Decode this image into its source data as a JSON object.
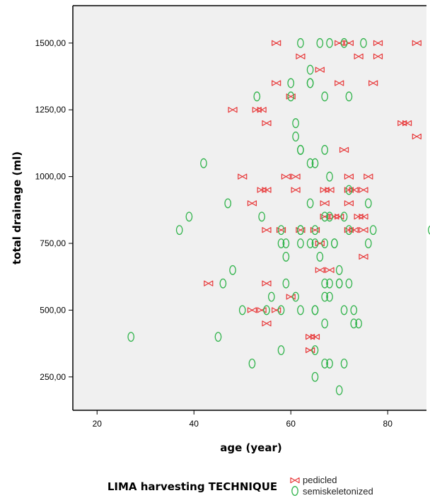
{
  "chart_data": {
    "type": "scatter",
    "xlabel": "age (year)",
    "ylabel": "total drainage (ml)",
    "xlim": [
      15,
      88
    ],
    "ylim": [
      125,
      1640
    ],
    "x_ticks": [
      20,
      40,
      60,
      80
    ],
    "y_ticks": [
      250,
      500,
      750,
      1000,
      1250,
      1500
    ],
    "x_tick_labels": [
      "20",
      "40",
      "60",
      "80"
    ],
    "y_tick_labels": [
      "250,00",
      "500,00",
      "750,00",
      "1000,00",
      "1250,00",
      "1500,00"
    ],
    "grid": false,
    "plot_background": "#f0f0f0",
    "legend": {
      "title": "LIMA harvesting TECHNIQUE",
      "placement": "bottom",
      "entries": [
        {
          "label": "pedicled",
          "marker": "bowtie",
          "color": "#e8393a"
        },
        {
          "label": "semiskeletonized",
          "marker": "ellipse",
          "color": "#2fb34a"
        }
      ]
    },
    "series": [
      {
        "name": "pedicled",
        "color": "#e8393a",
        "points": [
          [
            57,
            1500
          ],
          [
            70,
            1500
          ],
          [
            72,
            1500
          ],
          [
            78,
            1500
          ],
          [
            86,
            1500
          ],
          [
            62,
            1450
          ],
          [
            74,
            1450
          ],
          [
            78,
            1450
          ],
          [
            66,
            1400
          ],
          [
            57,
            1350
          ],
          [
            70,
            1350
          ],
          [
            77,
            1350
          ],
          [
            60,
            1300
          ],
          [
            48,
            1250
          ],
          [
            53,
            1250
          ],
          [
            54,
            1250
          ],
          [
            55,
            1200
          ],
          [
            83,
            1200
          ],
          [
            84,
            1200
          ],
          [
            86,
            1150
          ],
          [
            71,
            1100
          ],
          [
            59,
            1000
          ],
          [
            61,
            1000
          ],
          [
            50,
            1000
          ],
          [
            72,
            1000
          ],
          [
            76,
            1000
          ],
          [
            54,
            950
          ],
          [
            55,
            950
          ],
          [
            61,
            950
          ],
          [
            67,
            950
          ],
          [
            68,
            950
          ],
          [
            72,
            950
          ],
          [
            73,
            950
          ],
          [
            75,
            950
          ],
          [
            52,
            900
          ],
          [
            67,
            900
          ],
          [
            72,
            900
          ],
          [
            67,
            850
          ],
          [
            69,
            850
          ],
          [
            70,
            850
          ],
          [
            74,
            850
          ],
          [
            75,
            850
          ],
          [
            55,
            800
          ],
          [
            58,
            800
          ],
          [
            62,
            800
          ],
          [
            65,
            800
          ],
          [
            72,
            800
          ],
          [
            73,
            800
          ],
          [
            75,
            800
          ],
          [
            66,
            750
          ],
          [
            75,
            700
          ],
          [
            66,
            650
          ],
          [
            68,
            650
          ],
          [
            43,
            600
          ],
          [
            55,
            600
          ],
          [
            60,
            550
          ],
          [
            52,
            500
          ],
          [
            54,
            500
          ],
          [
            57,
            500
          ],
          [
            55,
            450
          ],
          [
            64,
            400
          ],
          [
            65,
            400
          ],
          [
            64,
            350
          ]
        ]
      },
      {
        "name": "semiskeletonized",
        "color": "#2fb34a",
        "points": [
          [
            62,
            1500
          ],
          [
            66,
            1500
          ],
          [
            68,
            1500
          ],
          [
            71,
            1500
          ],
          [
            75,
            1500
          ],
          [
            64,
            1400
          ],
          [
            60,
            1350
          ],
          [
            64,
            1350
          ],
          [
            64,
            1350
          ],
          [
            53,
            1300
          ],
          [
            60,
            1300
          ],
          [
            67,
            1300
          ],
          [
            72,
            1300
          ],
          [
            61,
            1200
          ],
          [
            61,
            1150
          ],
          [
            62,
            1100
          ],
          [
            62,
            1100
          ],
          [
            67,
            1100
          ],
          [
            42,
            1050
          ],
          [
            64,
            1050
          ],
          [
            65,
            1050
          ],
          [
            68,
            1000
          ],
          [
            72,
            950
          ],
          [
            47,
            900
          ],
          [
            64,
            900
          ],
          [
            76,
            900
          ],
          [
            39,
            850
          ],
          [
            54,
            850
          ],
          [
            67,
            850
          ],
          [
            68,
            850
          ],
          [
            71,
            850
          ],
          [
            37,
            800
          ],
          [
            58,
            800
          ],
          [
            62,
            800
          ],
          [
            62,
            800
          ],
          [
            65,
            800
          ],
          [
            72,
            800
          ],
          [
            77,
            800
          ],
          [
            89,
            800
          ],
          [
            58,
            750
          ],
          [
            59,
            750
          ],
          [
            62,
            750
          ],
          [
            64,
            750
          ],
          [
            65,
            750
          ],
          [
            67,
            750
          ],
          [
            69,
            750
          ],
          [
            69,
            750
          ],
          [
            76,
            750
          ],
          [
            59,
            700
          ],
          [
            66,
            700
          ],
          [
            48,
            650
          ],
          [
            70,
            650
          ],
          [
            46,
            600
          ],
          [
            59,
            600
          ],
          [
            67,
            600
          ],
          [
            68,
            600
          ],
          [
            70,
            600
          ],
          [
            70,
            600
          ],
          [
            72,
            600
          ],
          [
            56,
            550
          ],
          [
            61,
            550
          ],
          [
            67,
            550
          ],
          [
            68,
            550
          ],
          [
            50,
            500
          ],
          [
            55,
            500
          ],
          [
            58,
            500
          ],
          [
            62,
            500
          ],
          [
            65,
            500
          ],
          [
            65,
            500
          ],
          [
            71,
            500
          ],
          [
            73,
            500
          ],
          [
            67,
            450
          ],
          [
            73,
            450
          ],
          [
            74,
            450
          ],
          [
            27,
            400
          ],
          [
            45,
            400
          ],
          [
            58,
            350
          ],
          [
            65,
            350
          ],
          [
            52,
            300
          ],
          [
            67,
            300
          ],
          [
            68,
            300
          ],
          [
            71,
            300
          ],
          [
            65,
            250
          ],
          [
            70,
            200
          ]
        ]
      }
    ]
  }
}
